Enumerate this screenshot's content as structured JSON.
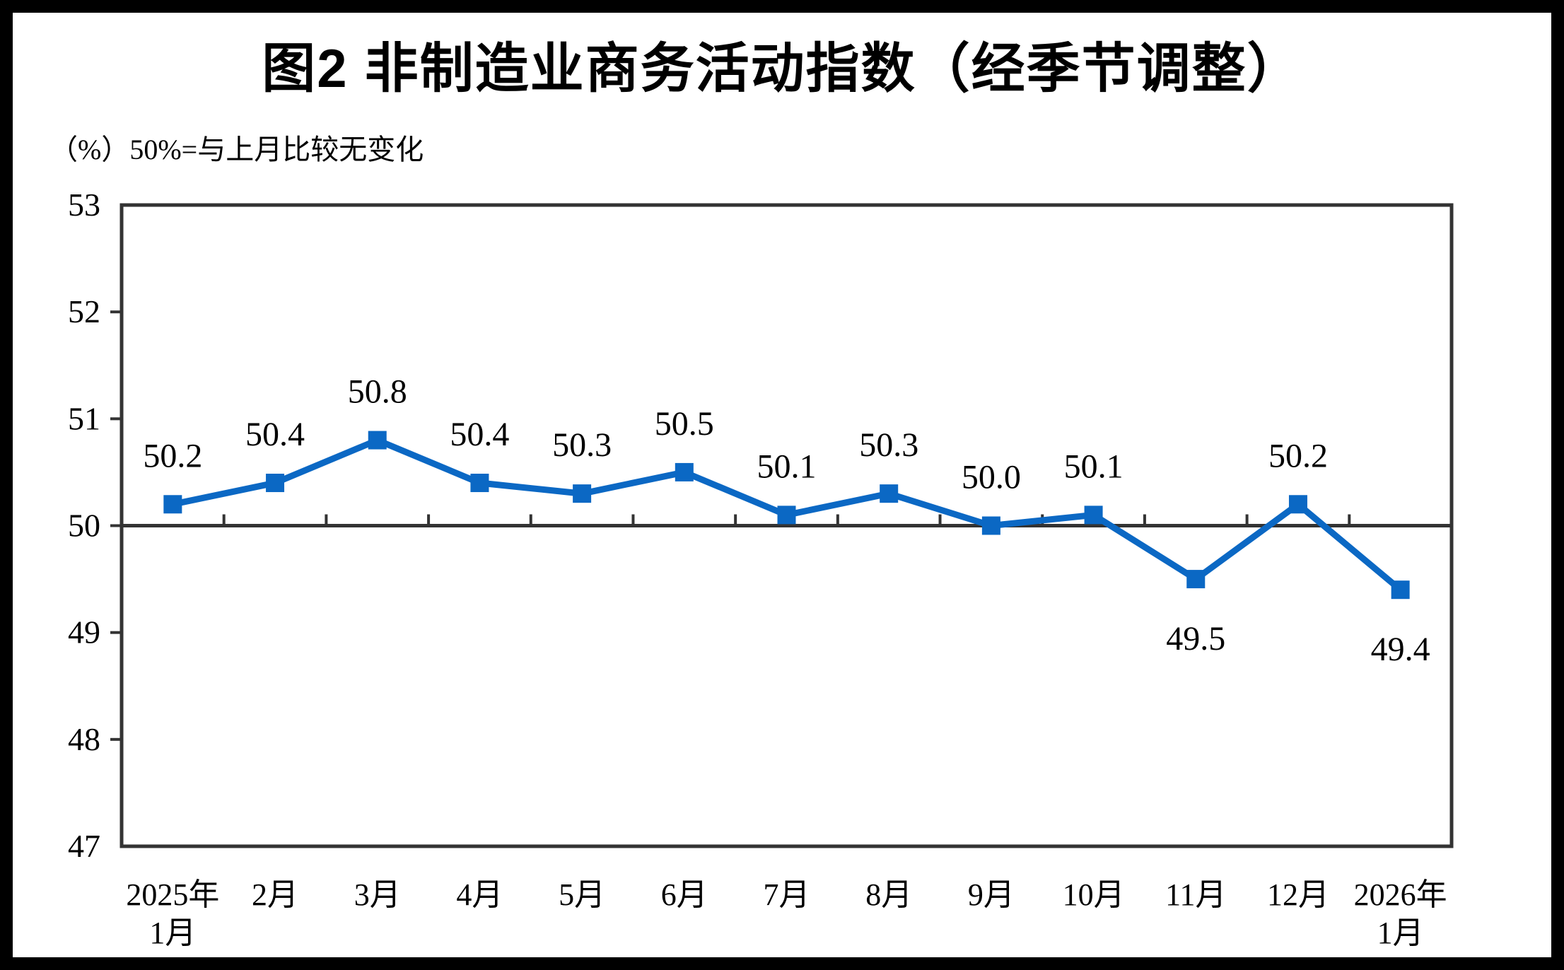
{
  "page": {
    "title": "图2 非制造业商务活动指数（经季节调整）",
    "unit_note": "（%）50%=与上月比较无变化"
  },
  "chart_data": {
    "type": "line",
    "title": "图2 非制造业商务活动指数（经季节调整）",
    "unit_note": "（%）50%=与上月比较无变化",
    "ylabel": "%",
    "categories": [
      "2025年\n1月",
      "2月",
      "3月",
      "4月",
      "5月",
      "6月",
      "7月",
      "8月",
      "9月",
      "10月",
      "11月",
      "12月",
      "2026年\n1月"
    ],
    "series": [
      {
        "name": "非制造业商务活动指数（经季节调整）",
        "values": [
          50.2,
          50.4,
          50.8,
          50.4,
          50.3,
          50.5,
          50.1,
          50.3,
          50.0,
          50.1,
          49.5,
          50.2,
          49.4
        ],
        "point_labels": [
          "50.2",
          "50.4",
          "50.8",
          "50.4",
          "50.3",
          "50.5",
          "50.1",
          "50.3",
          "50.0",
          "50.1",
          "49.5",
          "50.2",
          "49.4"
        ],
        "label_positions": [
          "above",
          "above",
          "above",
          "above",
          "above",
          "above",
          "above",
          "above",
          "above",
          "above",
          "below",
          "above",
          "below"
        ]
      }
    ],
    "ylim": [
      47,
      53
    ],
    "ytick_step": 1,
    "ytick_labels": [
      "47",
      "48",
      "49",
      "50",
      "51",
      "52",
      "53"
    ],
    "reference_line": 50,
    "grid": "off",
    "legend": "none",
    "marker": "square",
    "colors": {
      "line": "#0b68c4",
      "marker": "#0b68c4",
      "axis": "#333333",
      "text": "#000000",
      "background": "#ffffff",
      "outer_frame": "#000000"
    }
  }
}
